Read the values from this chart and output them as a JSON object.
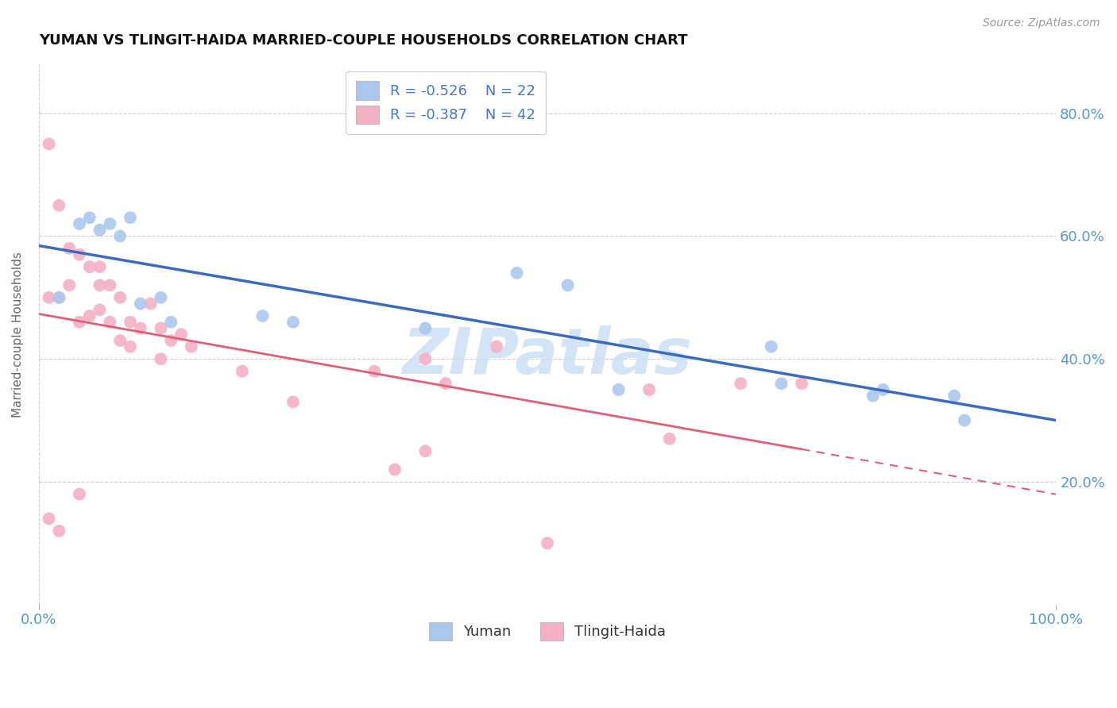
{
  "title": "YUMAN VS TLINGIT-HAIDA MARRIED-COUPLE HOUSEHOLDS CORRELATION CHART",
  "source": "Source: ZipAtlas.com",
  "ylabel": "Married-couple Households",
  "xlim": [
    0,
    1.0
  ],
  "ylim": [
    0.0,
    0.88
  ],
  "yuman_R": -0.526,
  "yuman_N": 22,
  "tlingit_R": -0.387,
  "tlingit_N": 42,
  "yuman_color": "#aac8ee",
  "yuman_edge_color": "#aac8ee",
  "yuman_line_color": "#3a6bbf",
  "tlingit_color": "#f5b0c5",
  "tlingit_edge_color": "#f5b0c5",
  "tlingit_line_color": "#e0607a",
  "watermark": "ZIPatlas",
  "watermark_color": "#cce0f5",
  "ytick_labels": [
    "20.0%",
    "40.0%",
    "60.0%",
    "80.0%"
  ],
  "ytick_values": [
    0.2,
    0.4,
    0.6,
    0.8
  ],
  "xtick_labels": [
    "0.0%",
    "100.0%"
  ],
  "xtick_values": [
    0.0,
    1.0
  ],
  "grid_color": "#cccccc",
  "yuman_x": [
    0.02,
    0.04,
    0.05,
    0.06,
    0.07,
    0.08,
    0.09,
    0.1,
    0.12,
    0.22,
    0.38,
    0.47,
    0.52,
    0.57,
    0.72,
    0.73,
    0.82,
    0.83,
    0.9,
    0.91,
    0.25,
    0.13
  ],
  "yuman_y": [
    0.5,
    0.62,
    0.63,
    0.61,
    0.62,
    0.6,
    0.63,
    0.49,
    0.5,
    0.47,
    0.45,
    0.54,
    0.52,
    0.35,
    0.42,
    0.36,
    0.34,
    0.35,
    0.34,
    0.3,
    0.46,
    0.46
  ],
  "tlingit_x": [
    0.01,
    0.01,
    0.02,
    0.02,
    0.03,
    0.03,
    0.04,
    0.04,
    0.05,
    0.05,
    0.06,
    0.06,
    0.06,
    0.07,
    0.07,
    0.08,
    0.08,
    0.09,
    0.09,
    0.1,
    0.11,
    0.12,
    0.12,
    0.13,
    0.14,
    0.15,
    0.2,
    0.25,
    0.33,
    0.35,
    0.4,
    0.45,
    0.6,
    0.62,
    0.69,
    0.75,
    0.01,
    0.02,
    0.04,
    0.38,
    0.38,
    0.5
  ],
  "tlingit_y": [
    0.75,
    0.5,
    0.65,
    0.5,
    0.58,
    0.52,
    0.57,
    0.46,
    0.55,
    0.47,
    0.55,
    0.52,
    0.48,
    0.52,
    0.46,
    0.5,
    0.43,
    0.46,
    0.42,
    0.45,
    0.49,
    0.45,
    0.4,
    0.43,
    0.44,
    0.42,
    0.38,
    0.33,
    0.38,
    0.22,
    0.36,
    0.42,
    0.35,
    0.27,
    0.36,
    0.36,
    0.14,
    0.12,
    0.18,
    0.25,
    0.4,
    0.1
  ],
  "legend_text_color": "#4477cc",
  "tick_color": "#5599cc",
  "title_fontsize": 13,
  "scatter_size": 130
}
